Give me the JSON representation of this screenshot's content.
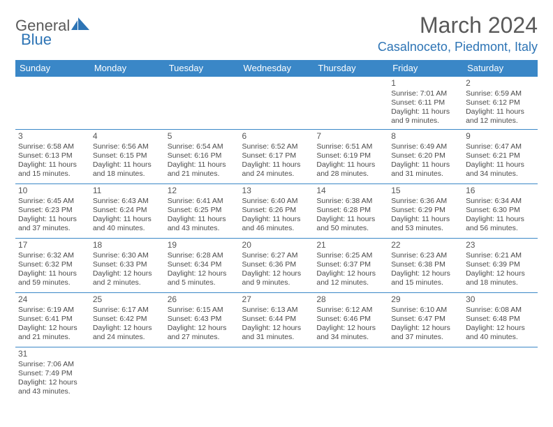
{
  "brand": {
    "part1": "General",
    "part2": "Blue",
    "mark_color": "#2d74b5",
    "text_gray": "#5a5a5a"
  },
  "title": "March 2024",
  "location": "Casalnoceto, Piedmont, Italy",
  "colors": {
    "header_bg": "#3a87c7",
    "header_fg": "#ffffff",
    "accent": "#2d74b5",
    "body_text": "#4a4a4a",
    "rule": "#3a87c7",
    "bg": "#ffffff"
  },
  "weekday_labels": [
    "Sunday",
    "Monday",
    "Tuesday",
    "Wednesday",
    "Thursday",
    "Friday",
    "Saturday"
  ],
  "weeks": [
    [
      null,
      null,
      null,
      null,
      null,
      {
        "n": "1",
        "sunrise": "7:01 AM",
        "sunset": "6:11 PM",
        "daylight": "11 hours and 9 minutes."
      },
      {
        "n": "2",
        "sunrise": "6:59 AM",
        "sunset": "6:12 PM",
        "daylight": "11 hours and 12 minutes."
      }
    ],
    [
      {
        "n": "3",
        "sunrise": "6:58 AM",
        "sunset": "6:13 PM",
        "daylight": "11 hours and 15 minutes."
      },
      {
        "n": "4",
        "sunrise": "6:56 AM",
        "sunset": "6:15 PM",
        "daylight": "11 hours and 18 minutes."
      },
      {
        "n": "5",
        "sunrise": "6:54 AM",
        "sunset": "6:16 PM",
        "daylight": "11 hours and 21 minutes."
      },
      {
        "n": "6",
        "sunrise": "6:52 AM",
        "sunset": "6:17 PM",
        "daylight": "11 hours and 24 minutes."
      },
      {
        "n": "7",
        "sunrise": "6:51 AM",
        "sunset": "6:19 PM",
        "daylight": "11 hours and 28 minutes."
      },
      {
        "n": "8",
        "sunrise": "6:49 AM",
        "sunset": "6:20 PM",
        "daylight": "11 hours and 31 minutes."
      },
      {
        "n": "9",
        "sunrise": "6:47 AM",
        "sunset": "6:21 PM",
        "daylight": "11 hours and 34 minutes."
      }
    ],
    [
      {
        "n": "10",
        "sunrise": "6:45 AM",
        "sunset": "6:23 PM",
        "daylight": "11 hours and 37 minutes."
      },
      {
        "n": "11",
        "sunrise": "6:43 AM",
        "sunset": "6:24 PM",
        "daylight": "11 hours and 40 minutes."
      },
      {
        "n": "12",
        "sunrise": "6:41 AM",
        "sunset": "6:25 PM",
        "daylight": "11 hours and 43 minutes."
      },
      {
        "n": "13",
        "sunrise": "6:40 AM",
        "sunset": "6:26 PM",
        "daylight": "11 hours and 46 minutes."
      },
      {
        "n": "14",
        "sunrise": "6:38 AM",
        "sunset": "6:28 PM",
        "daylight": "11 hours and 50 minutes."
      },
      {
        "n": "15",
        "sunrise": "6:36 AM",
        "sunset": "6:29 PM",
        "daylight": "11 hours and 53 minutes."
      },
      {
        "n": "16",
        "sunrise": "6:34 AM",
        "sunset": "6:30 PM",
        "daylight": "11 hours and 56 minutes."
      }
    ],
    [
      {
        "n": "17",
        "sunrise": "6:32 AM",
        "sunset": "6:32 PM",
        "daylight": "11 hours and 59 minutes."
      },
      {
        "n": "18",
        "sunrise": "6:30 AM",
        "sunset": "6:33 PM",
        "daylight": "12 hours and 2 minutes."
      },
      {
        "n": "19",
        "sunrise": "6:28 AM",
        "sunset": "6:34 PM",
        "daylight": "12 hours and 5 minutes."
      },
      {
        "n": "20",
        "sunrise": "6:27 AM",
        "sunset": "6:36 PM",
        "daylight": "12 hours and 9 minutes."
      },
      {
        "n": "21",
        "sunrise": "6:25 AM",
        "sunset": "6:37 PM",
        "daylight": "12 hours and 12 minutes."
      },
      {
        "n": "22",
        "sunrise": "6:23 AM",
        "sunset": "6:38 PM",
        "daylight": "12 hours and 15 minutes."
      },
      {
        "n": "23",
        "sunrise": "6:21 AM",
        "sunset": "6:39 PM",
        "daylight": "12 hours and 18 minutes."
      }
    ],
    [
      {
        "n": "24",
        "sunrise": "6:19 AM",
        "sunset": "6:41 PM",
        "daylight": "12 hours and 21 minutes."
      },
      {
        "n": "25",
        "sunrise": "6:17 AM",
        "sunset": "6:42 PM",
        "daylight": "12 hours and 24 minutes."
      },
      {
        "n": "26",
        "sunrise": "6:15 AM",
        "sunset": "6:43 PM",
        "daylight": "12 hours and 27 minutes."
      },
      {
        "n": "27",
        "sunrise": "6:13 AM",
        "sunset": "6:44 PM",
        "daylight": "12 hours and 31 minutes."
      },
      {
        "n": "28",
        "sunrise": "6:12 AM",
        "sunset": "6:46 PM",
        "daylight": "12 hours and 34 minutes."
      },
      {
        "n": "29",
        "sunrise": "6:10 AM",
        "sunset": "6:47 PM",
        "daylight": "12 hours and 37 minutes."
      },
      {
        "n": "30",
        "sunrise": "6:08 AM",
        "sunset": "6:48 PM",
        "daylight": "12 hours and 40 minutes."
      }
    ],
    [
      {
        "n": "31",
        "sunrise": "7:06 AM",
        "sunset": "7:49 PM",
        "daylight": "12 hours and 43 minutes."
      },
      null,
      null,
      null,
      null,
      null,
      null
    ]
  ],
  "labels": {
    "sunrise": "Sunrise:",
    "sunset": "Sunset:",
    "daylight": "Daylight:"
  }
}
